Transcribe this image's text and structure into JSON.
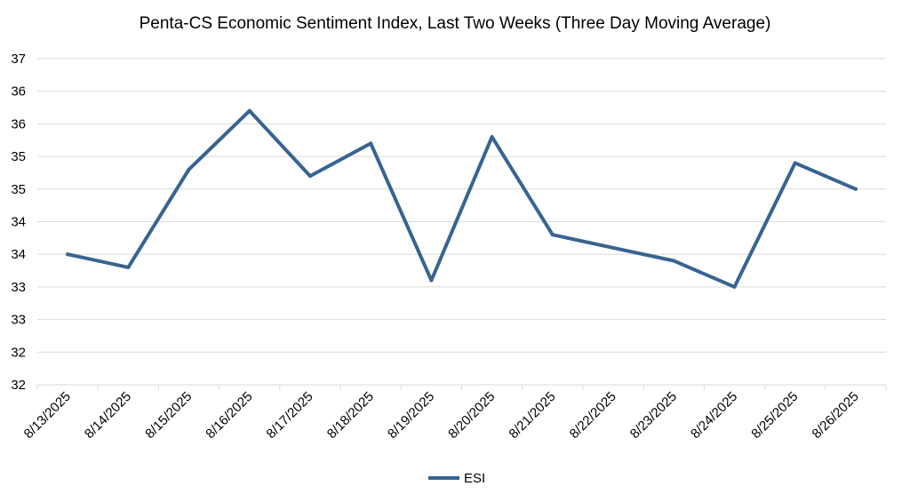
{
  "chart_data": {
    "type": "line",
    "title": "Penta-CS Economic Sentiment Index, Last Two Weeks (Three Day Moving Average)",
    "xlabel": "",
    "ylabel": "",
    "categories": [
      "8/13/2025",
      "8/14/2025",
      "8/15/2025",
      "8/16/2025",
      "8/17/2025",
      "8/18/2025",
      "8/19/2025",
      "8/20/2025",
      "8/21/2025",
      "8/22/2025",
      "8/23/2025",
      "8/24/2025",
      "8/25/2025",
      "8/26/2025"
    ],
    "y_tick_labels": [
      "32",
      "32",
      "33",
      "33",
      "34",
      "34",
      "35",
      "35",
      "36",
      "36",
      "37"
    ],
    "ylim": [
      32,
      37
    ],
    "grid": true,
    "legend_position": "bottom",
    "series": [
      {
        "name": "ESI",
        "color": "#376491",
        "values": [
          34.0,
          33.8,
          35.3,
          36.2,
          35.2,
          35.7,
          33.6,
          35.8,
          34.3,
          34.1,
          33.9,
          33.5,
          35.4,
          35.0
        ]
      }
    ]
  }
}
